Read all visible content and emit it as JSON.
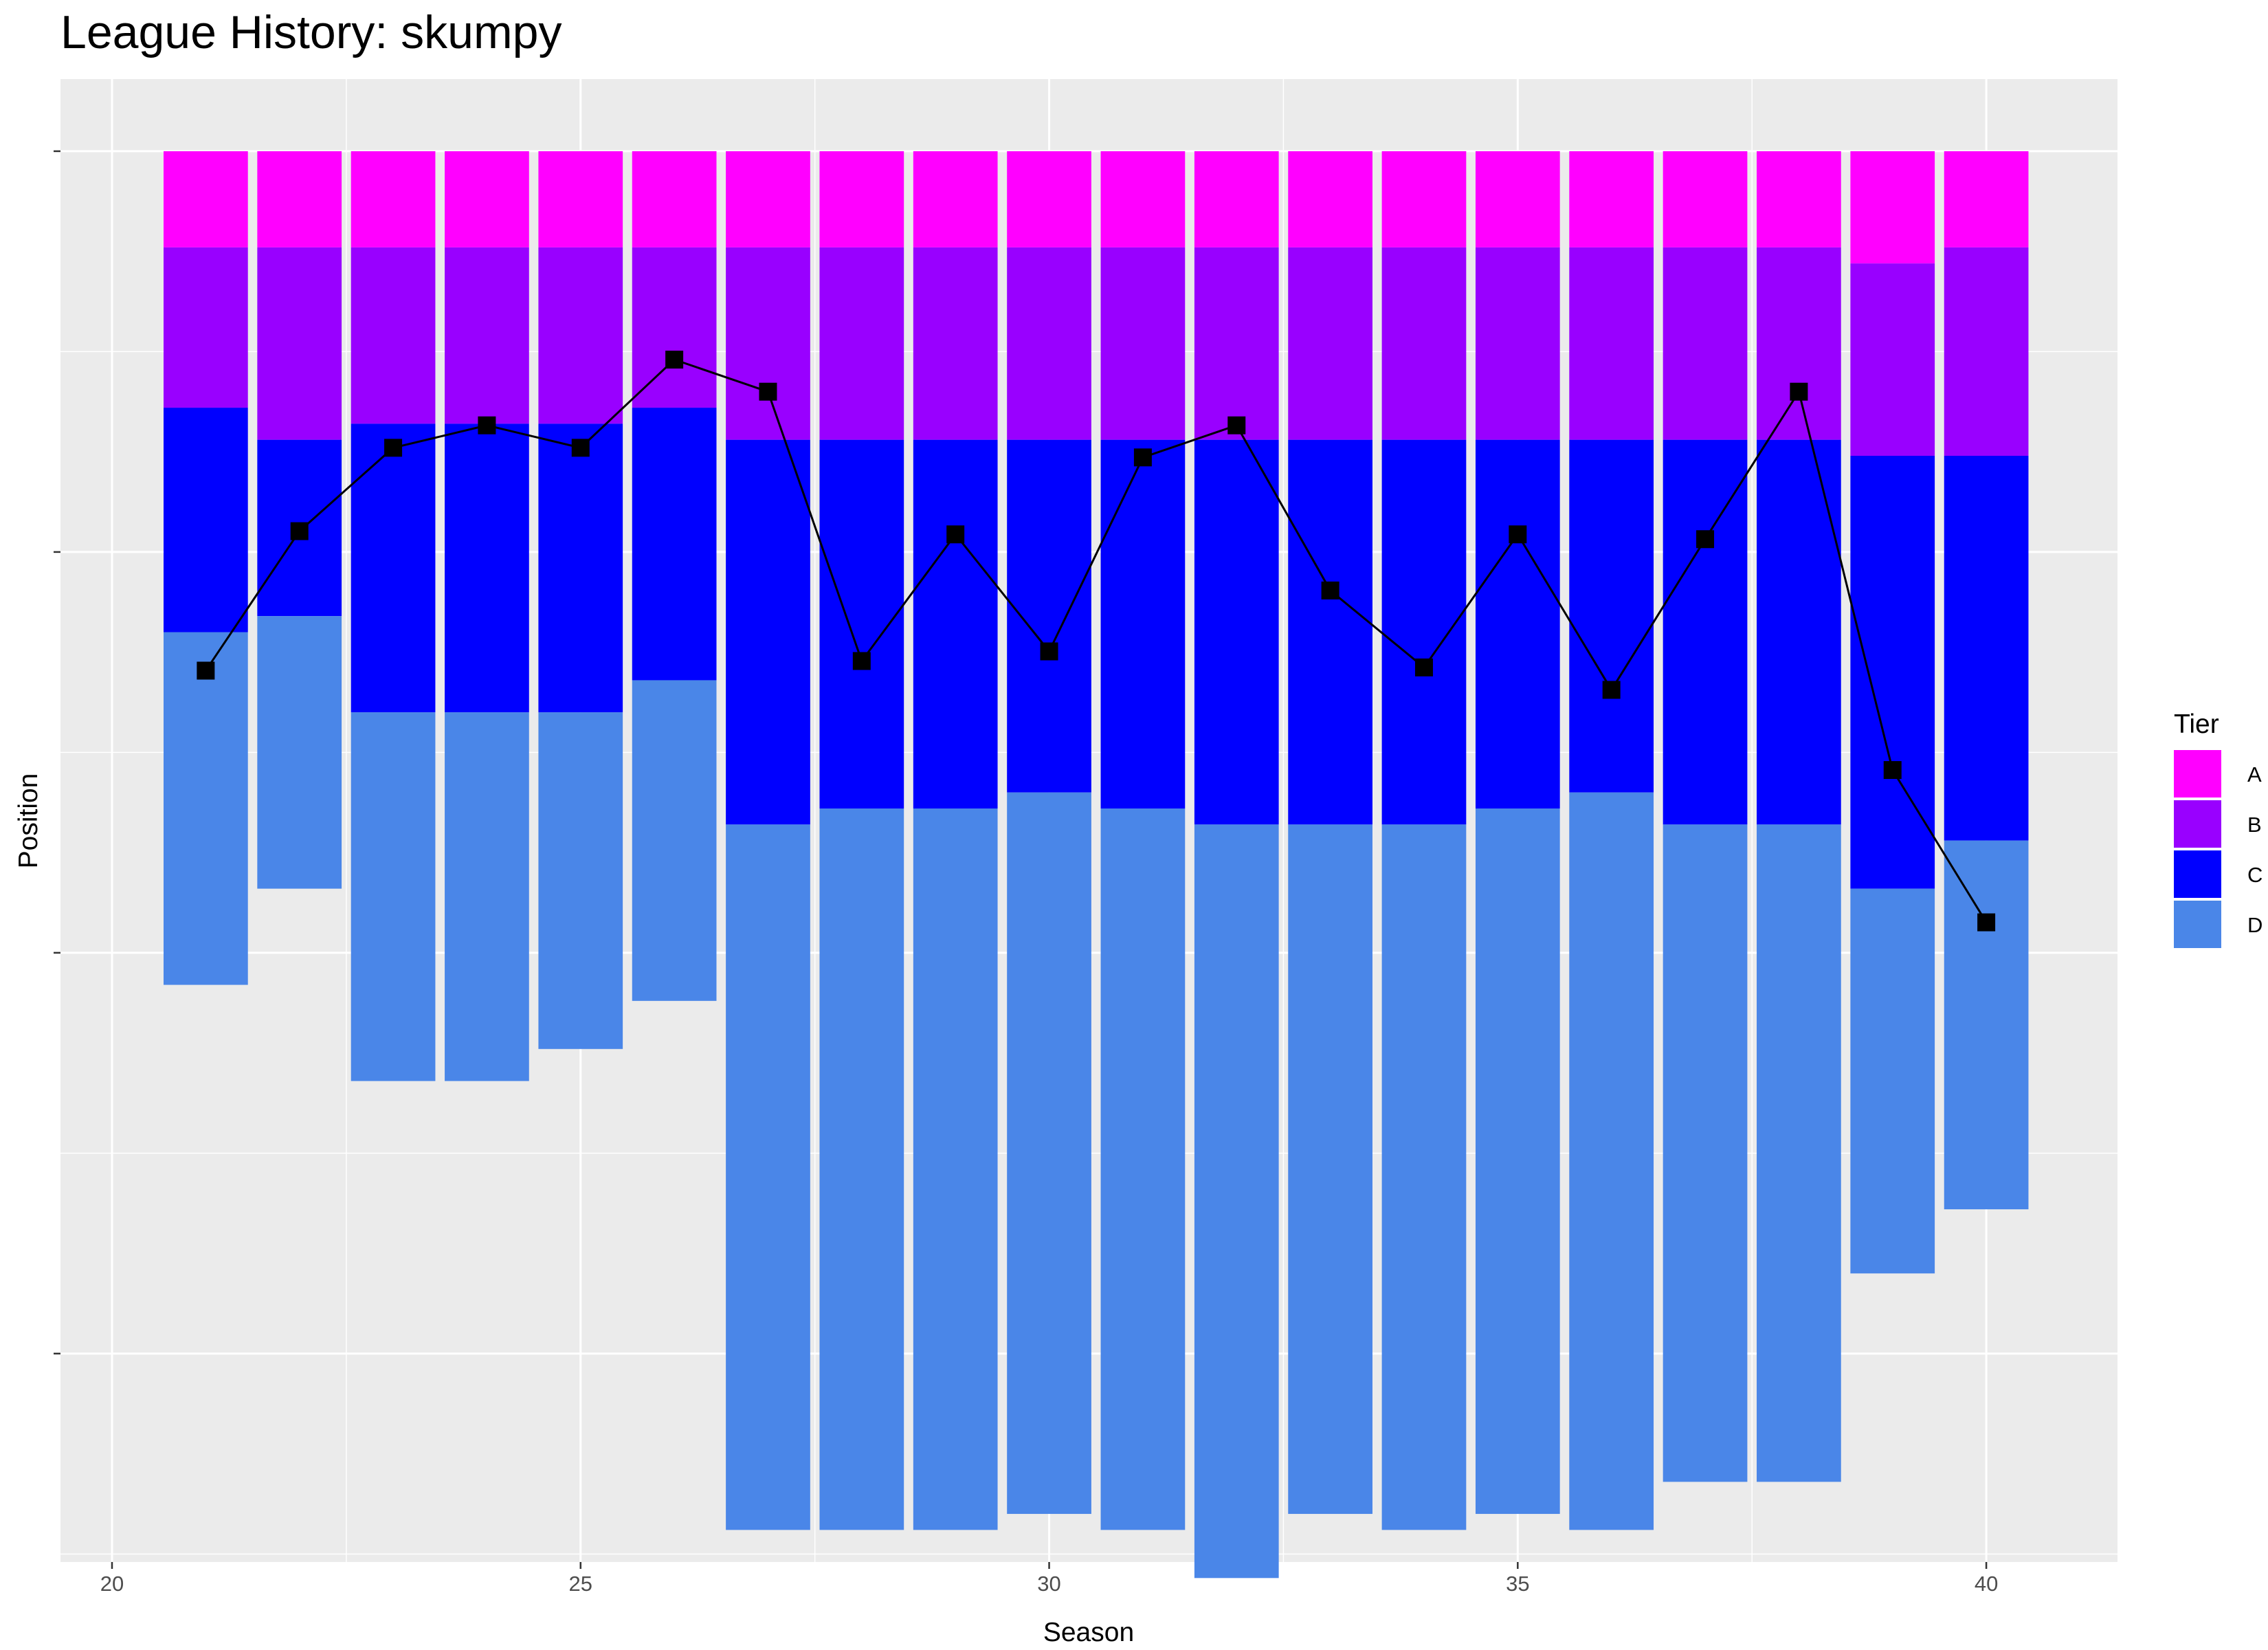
{
  "title": "League History: skumpy",
  "chart_data": {
    "type": "bar",
    "title": "League History: skumpy",
    "xlabel": "Season",
    "ylabel": "Position",
    "x_ticks": [
      20,
      25,
      30,
      35,
      40
    ],
    "xlim": [
      19.45,
      41.4
    ],
    "ylim_note": "y axis reversed (position 1 at top); tick labels not printed",
    "ylim": [
      -3.5,
      89
    ],
    "y_ticks": [
      1,
      26,
      51,
      76
    ],
    "y_minor": [
      13.5,
      38.5,
      63.5,
      88.5
    ],
    "grid": true,
    "legend": {
      "title": "Tier",
      "placement": "right",
      "entries": [
        {
          "label": "A",
          "color": "#FF00FF"
        },
        {
          "label": "B",
          "color": "#9900FF"
        },
        {
          "label": "C",
          "color": "#0000FF"
        },
        {
          "label": "D",
          "color": "#4A86E8"
        }
      ]
    },
    "seasons": [
      21,
      22,
      23,
      24,
      25,
      26,
      27,
      28,
      29,
      30,
      31,
      32,
      33,
      34,
      35,
      36,
      37,
      38,
      39,
      40
    ],
    "tier_boundaries": [
      [
        1,
        7,
        17,
        31,
        53
      ],
      [
        1,
        7,
        19,
        30,
        47
      ],
      [
        1,
        7,
        18,
        36,
        59
      ],
      [
        1,
        7,
        18,
        36,
        59
      ],
      [
        1,
        7,
        18,
        36,
        57
      ],
      [
        1,
        7,
        17,
        34,
        54
      ],
      [
        1,
        7,
        19,
        43,
        87
      ],
      [
        1,
        7,
        19,
        42,
        87
      ],
      [
        1,
        7,
        19,
        42,
        87
      ],
      [
        1,
        7,
        19,
        41,
        86
      ],
      [
        1,
        7,
        19,
        42,
        87
      ],
      [
        1,
        7,
        19,
        43,
        90
      ],
      [
        1,
        7,
        19,
        43,
        86
      ],
      [
        1,
        7,
        19,
        43,
        87
      ],
      [
        1,
        7,
        19,
        42,
        86
      ],
      [
        1,
        7,
        19,
        41,
        87
      ],
      [
        1,
        7,
        19,
        43,
        84
      ],
      [
        1,
        7,
        19,
        43,
        84
      ],
      [
        1,
        8,
        20,
        47,
        71
      ],
      [
        1,
        7,
        20,
        44,
        67
      ]
    ],
    "series": [
      {
        "type": "line",
        "values": [
          33.4,
          24.7,
          19.5,
          18.1,
          19.5,
          14.0,
          16.0,
          32.8,
          24.9,
          32.2,
          20.1,
          18.1,
          28.4,
          33.2,
          24.9,
          34.6,
          25.2,
          16.0,
          39.6,
          49.1
        ]
      }
    ]
  }
}
